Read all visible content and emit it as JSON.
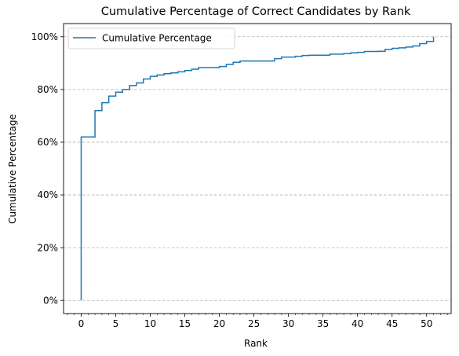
{
  "chart_data": {
    "type": "line",
    "drawstyle": "steps-post",
    "title": "Cumulative Percentage of Correct Candidates by Rank",
    "xlabel": "Rank",
    "ylabel": "Cumulative Percentage",
    "xlim": [
      -2.55,
      53.55
    ],
    "ylim": [
      -5,
      105
    ],
    "x_ticks": [
      0,
      5,
      10,
      15,
      20,
      25,
      30,
      35,
      40,
      45,
      50
    ],
    "x_tick_labels": [
      "0",
      "5",
      "10",
      "15",
      "20",
      "25",
      "30",
      "35",
      "40",
      "45",
      "50"
    ],
    "x_minor_step": 1,
    "y_ticks": [
      0,
      20,
      40,
      60,
      80,
      100
    ],
    "y_tick_labels": [
      "0%",
      "20%",
      "40%",
      "60%",
      "80%",
      "100%"
    ],
    "grid": "y-dashed",
    "legend": "upper-left",
    "series": [
      {
        "name": "Cumulative Percentage",
        "color": "#1f77b4",
        "x": [
          0,
          0,
          1,
          2,
          3,
          4,
          5,
          6,
          7,
          8,
          9,
          10,
          11,
          12,
          13,
          14,
          15,
          16,
          17,
          18,
          19,
          20,
          21,
          22,
          23,
          24,
          25,
          26,
          27,
          28,
          29,
          30,
          31,
          32,
          33,
          34,
          35,
          36,
          37,
          38,
          39,
          40,
          41,
          42,
          43,
          44,
          45,
          46,
          47,
          48,
          49,
          50,
          51,
          51
        ],
        "y": [
          0,
          62,
          62,
          72,
          75,
          77.5,
          79,
          80,
          81.5,
          82.5,
          84,
          85,
          85.5,
          86,
          86.3,
          86.7,
          87.2,
          87.7,
          88.3,
          88.3,
          88.3,
          88.7,
          89.5,
          90.3,
          90.8,
          90.8,
          90.8,
          90.8,
          90.8,
          91.7,
          92.3,
          92.3,
          92.6,
          92.9,
          93,
          93,
          93,
          93.4,
          93.4,
          93.6,
          93.9,
          94.1,
          94.4,
          94.4,
          94.5,
          95.2,
          95.6,
          95.8,
          96.1,
          96.5,
          97.4,
          98.2,
          98.2,
          100
        ]
      }
    ]
  }
}
